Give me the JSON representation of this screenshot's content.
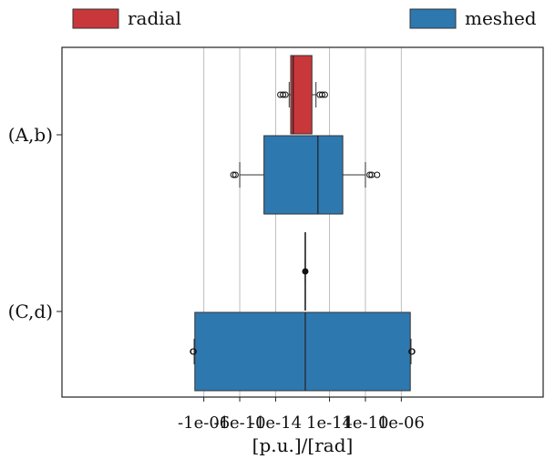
{
  "chart_data": {
    "type": "boxplot",
    "title": "",
    "xlabel": "[p.u.]/[rad]",
    "ylabel": "",
    "x_scale": "symlog",
    "x_ticks": [
      "-1e-06",
      "-1e-10",
      "-1e-14",
      "1e-14",
      "1e-10",
      "1e-06"
    ],
    "categories": [
      "(A,b)",
      "(C,d)"
    ],
    "grid": "vertical",
    "legend_position": "top",
    "series": [
      {
        "name": "radial",
        "color": "#c8373a",
        "boxes": [
          {
            "category": "(A,b)",
            "whisker_low": -3e-16,
            "q1": -2e-16,
            "median": -1e-16,
            "q3": 1e-16,
            "whisker_high": 3e-16,
            "outliers": [
              -3e-15,
              -1.5e-15,
              -8e-16,
              8e-16,
              1.5e-15,
              3e-15
            ]
          },
          {
            "category": "(C,d)",
            "whisker_low": 1e-17,
            "q1": 1e-17,
            "median": 1e-17,
            "q3": 1e-17,
            "whisker_high": 1e-17,
            "outliers": []
          }
        ]
      },
      {
        "name": "meshed",
        "color": "#2e78b0",
        "boxes": [
          {
            "category": "(A,b)",
            "whisker_low": -1e-10,
            "q1": -2e-13,
            "median": 5e-16,
            "q3": 3e-13,
            "whisker_high": 1e-10,
            "outliers": [
              -5e-10,
              -3e-10,
              3e-10,
              5e-10,
              2e-09
            ]
          },
          {
            "category": "(C,d)",
            "whisker_low": -1.2e-05,
            "q1": -1e-05,
            "median": 1e-17,
            "q3": 1e-05,
            "whisker_high": 1.2e-05,
            "outliers": [
              -1.6e-05,
              -1.4e-05,
              1.4e-05,
              1.6e-05
            ]
          }
        ]
      }
    ]
  }
}
